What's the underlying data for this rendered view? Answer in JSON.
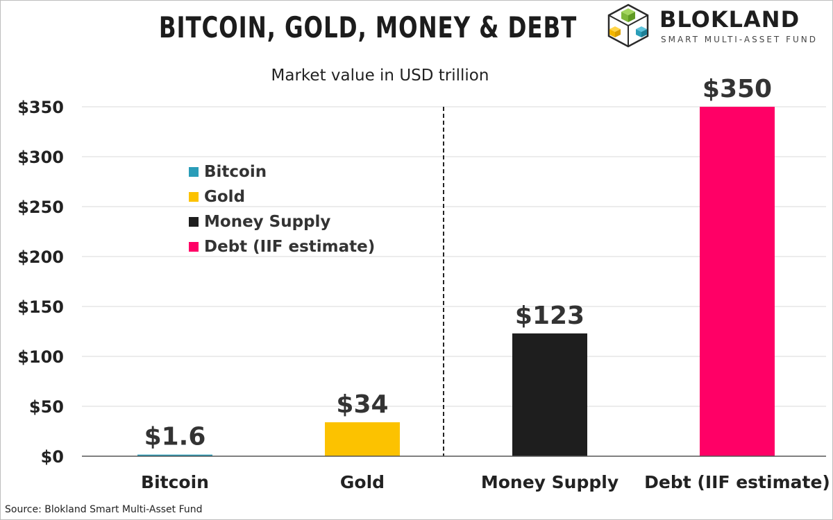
{
  "header": {
    "title": "BITCOIN, GOLD, MONEY & DEBT",
    "brand_name": "BLOKLAND",
    "brand_tagline": "SMART MULTI-ASSET FUND"
  },
  "footer": {
    "source": "Source: Blokland Smart Multi-Asset Fund"
  },
  "colors": {
    "bitcoin": "#2a9db8",
    "gold": "#fcc200",
    "money_supply": "#1e1e1e",
    "debt": "#ff0066",
    "grid": "#d9d9d9",
    "axis": "#555555"
  },
  "chart_data": {
    "type": "bar",
    "title": "Market value in USD trillion",
    "categories": [
      "Bitcoin",
      "Gold",
      "Money Supply",
      "Debt (IIF estimate)"
    ],
    "values": [
      1.6,
      34,
      123,
      350
    ],
    "data_labels": [
      "$1.6",
      "$34",
      "$123",
      "$350"
    ],
    "ylim": [
      0,
      350
    ],
    "yticks": [
      0,
      50,
      100,
      150,
      200,
      250,
      300,
      350
    ],
    "ytick_labels": [
      "$0",
      "$50",
      "$100",
      "$150",
      "$200",
      "$250",
      "$300",
      "$350"
    ],
    "grid": true,
    "separator_after_category": "Gold",
    "legend_position": "upper-left",
    "legend": [
      {
        "label": "Bitcoin",
        "color": "#2a9db8"
      },
      {
        "label": "Gold",
        "color": "#fcc200"
      },
      {
        "label": "Money Supply",
        "color": "#1e1e1e"
      },
      {
        "label": "Debt (IIF estimate)",
        "color": "#ff0066"
      }
    ]
  }
}
